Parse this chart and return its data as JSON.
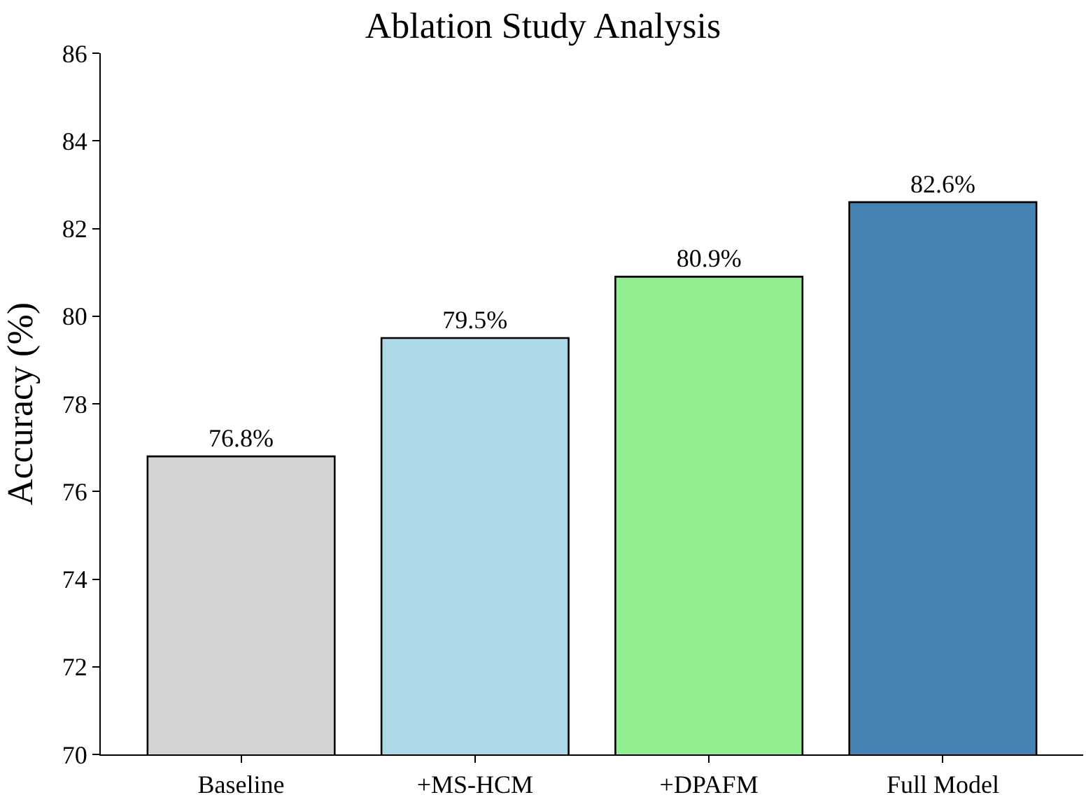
{
  "chart_data": {
    "type": "bar",
    "title": "Ablation Study Analysis",
    "ylabel": "Accuracy (%)",
    "categories": [
      "Baseline",
      "+MS-HCM",
      "+DPAFM",
      "Full Model"
    ],
    "values": [
      76.8,
      79.5,
      80.9,
      82.6
    ],
    "colors": [
      "#d3d3d3",
      "#add8e6",
      "#90ee90",
      "#4682b4"
    ],
    "value_labels": [
      "76.8%",
      "79.5%",
      "80.9%",
      "82.6%"
    ],
    "ylim": [
      70,
      86
    ],
    "yticks": [
      70,
      72,
      74,
      76,
      78,
      80,
      82,
      84,
      86
    ],
    "grid": false
  }
}
